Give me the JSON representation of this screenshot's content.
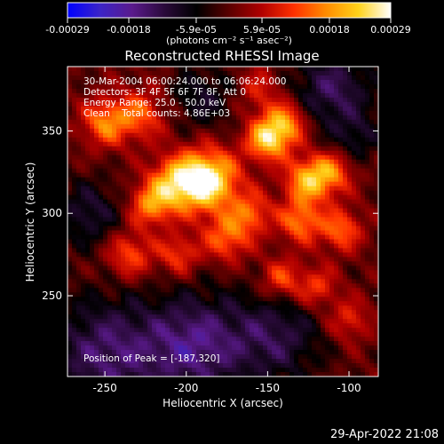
{
  "colorbar": {
    "tick_labels": [
      "-0.00029",
      "-0.00018",
      "-5.9e-05",
      "5.9e-05",
      "0.00018",
      "0.00029"
    ],
    "range": [
      -0.00029,
      0.00029
    ],
    "unit_label": "(photons cm⁻² s⁻¹ asec⁻²)",
    "stops": [
      "#0000ff",
      "#3b24c8",
      "#5a1a8c",
      "#2a0a3a",
      "#000000",
      "#5a0000",
      "#b00000",
      "#ff3000",
      "#ff8c00",
      "#ffd21a",
      "#ffffff"
    ]
  },
  "chart_data": {
    "type": "heatmap",
    "title": "Reconstructed RHESSI Image",
    "xlabel": "Heliocentric X (arcsec)",
    "ylabel": "Heliocentric Y (arcsec)",
    "xlim": [
      -273,
      -82
    ],
    "ylim": [
      201,
      389
    ],
    "x_ticks": [
      -250,
      -200,
      -150,
      -100
    ],
    "y_ticks": [
      250,
      300,
      350
    ],
    "info": [
      "30-Mar-2004 06:00:24.000 to 06:06:24.000",
      "Detectors: 3F 4F 5F 6F 7F 8F, Att 0",
      "Energy Range: 25.0 - 50.0 keV",
      "Clean    Total counts: 4.86E+03"
    ],
    "peak_label": "Position of Peak = [-187,320]",
    "peak": [
      -187,
      320
    ],
    "sources": [
      {
        "x": -187,
        "y": 320,
        "amp": 1.0,
        "sigma": 13
      },
      {
        "x": -207,
        "y": 318,
        "amp": 0.65,
        "sigma": 11
      },
      {
        "x": -250,
        "y": 355,
        "amp": 0.55,
        "sigma": 10
      },
      {
        "x": -228,
        "y": 360,
        "amp": 0.45,
        "sigma": 11
      },
      {
        "x": -222,
        "y": 305,
        "amp": 0.55,
        "sigma": 9
      },
      {
        "x": -235,
        "y": 275,
        "amp": 0.45,
        "sigma": 10
      },
      {
        "x": -175,
        "y": 285,
        "amp": 0.5,
        "sigma": 10
      },
      {
        "x": -160,
        "y": 300,
        "amp": 0.45,
        "sigma": 9
      },
      {
        "x": -150,
        "y": 345,
        "amp": 0.8,
        "sigma": 9
      },
      {
        "x": -138,
        "y": 355,
        "amp": 0.6,
        "sigma": 9
      },
      {
        "x": -125,
        "y": 320,
        "amp": 0.7,
        "sigma": 10
      },
      {
        "x": -130,
        "y": 295,
        "amp": 0.55,
        "sigma": 9
      },
      {
        "x": -105,
        "y": 290,
        "amp": 0.5,
        "sigma": 9
      },
      {
        "x": -110,
        "y": 325,
        "amp": 0.45,
        "sigma": 9
      },
      {
        "x": -142,
        "y": 260,
        "amp": 0.45,
        "sigma": 9
      },
      {
        "x": -120,
        "y": 255,
        "amp": 0.4,
        "sigma": 9
      },
      {
        "x": -100,
        "y": 235,
        "amp": 0.35,
        "sigma": 9
      },
      {
        "x": -205,
        "y": 275,
        "amp": 0.4,
        "sigma": 9
      },
      {
        "x": -155,
        "y": 375,
        "amp": 0.3,
        "sigma": 10
      }
    ],
    "negative_regions": [
      {
        "x": -250,
        "y": 215,
        "amp": -0.5,
        "sigma": 24
      },
      {
        "x": -195,
        "y": 220,
        "amp": -0.55,
        "sigma": 22
      },
      {
        "x": -145,
        "y": 225,
        "amp": -0.4,
        "sigma": 20
      },
      {
        "x": -110,
        "y": 375,
        "amp": -0.45,
        "sigma": 18
      },
      {
        "x": -260,
        "y": 300,
        "amp": -0.35,
        "sigma": 14
      },
      {
        "x": -190,
        "y": 370,
        "amp": -0.3,
        "sigma": 14
      },
      {
        "x": -95,
        "y": 345,
        "amp": -0.25,
        "sigma": 10
      }
    ]
  },
  "footer": {
    "date": "29-Apr-2022 21:08"
  }
}
